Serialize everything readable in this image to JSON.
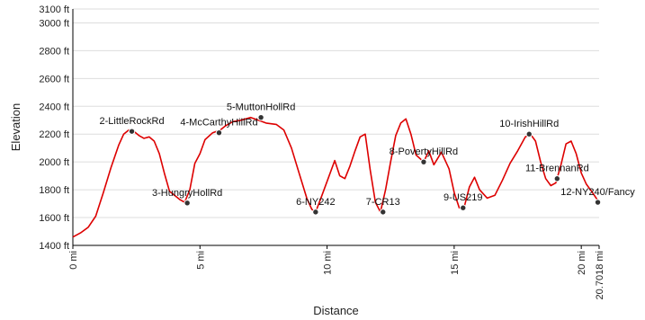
{
  "colors": {
    "line": "#dd0000",
    "grid": "#dddddd",
    "axis": "#000000",
    "marker": "#333333",
    "marker_ring": "#ffffff"
  },
  "chart_data": {
    "type": "line",
    "title": "",
    "xlabel": "Distance",
    "ylabel": "Elevation",
    "xlim": [
      0,
      20.7018
    ],
    "ylim": [
      1400,
      3100
    ],
    "grid": "horizontal",
    "x_ticks": [
      {
        "value": 0,
        "label": "0 mi"
      },
      {
        "value": 5,
        "label": "5 mi"
      },
      {
        "value": 10,
        "label": "10 mi"
      },
      {
        "value": 15,
        "label": "15 mi"
      },
      {
        "value": 20,
        "label": "20 mi"
      },
      {
        "value": 20.7018,
        "label": "20.7018 mi"
      }
    ],
    "y_ticks": [
      {
        "value": 1400,
        "label": "1400 ft"
      },
      {
        "value": 1600,
        "label": "1600 ft"
      },
      {
        "value": 1800,
        "label": "1800 ft"
      },
      {
        "value": 2000,
        "label": "2000 ft"
      },
      {
        "value": 2200,
        "label": "2200 ft"
      },
      {
        "value": 2400,
        "label": "2400 ft"
      },
      {
        "value": 2600,
        "label": "2600 ft"
      },
      {
        "value": 2800,
        "label": "2800 ft"
      },
      {
        "value": 3000,
        "label": "3000 ft"
      },
      {
        "value": 3100,
        "label": "3100 ft"
      }
    ],
    "series": [
      {
        "x": [
          0,
          0.3,
          0.6,
          0.9,
          1.2,
          1.5,
          1.8,
          2.0,
          2.2,
          2.4,
          2.6,
          2.8,
          3.0,
          3.2,
          3.4,
          3.6,
          3.8,
          4.0,
          4.2,
          4.4,
          4.6,
          4.8,
          5.0,
          5.2,
          5.5,
          5.8,
          6.0,
          6.3,
          6.6,
          7.0,
          7.3,
          7.6,
          8.0,
          8.3,
          8.6,
          8.9,
          9.2,
          9.4,
          9.55,
          9.8,
          10.0,
          10.3,
          10.5,
          10.7,
          10.9,
          11.1,
          11.3,
          11.5,
          11.7,
          11.9,
          12.1,
          12.3,
          12.5,
          12.7,
          12.9,
          13.1,
          13.3,
          13.5,
          13.8,
          14.0,
          14.2,
          14.5,
          14.8,
          15.0,
          15.2,
          15.4,
          15.6,
          15.8,
          16.0,
          16.3,
          16.6,
          16.9,
          17.2,
          17.5,
          17.8,
          18.0,
          18.2,
          18.4,
          18.6,
          18.8,
          19.0,
          19.2,
          19.4,
          19.6,
          19.8,
          20.0,
          20.2,
          20.4,
          20.7
        ],
        "y": [
          1460,
          1490,
          1530,
          1610,
          1780,
          1960,
          2120,
          2200,
          2230,
          2220,
          2190,
          2170,
          2180,
          2150,
          2060,
          1920,
          1790,
          1760,
          1730,
          1710,
          1800,
          1990,
          2060,
          2160,
          2210,
          2230,
          2260,
          2290,
          2300,
          2320,
          2300,
          2280,
          2270,
          2230,
          2100,
          1920,
          1740,
          1660,
          1640,
          1760,
          1860,
          2010,
          1900,
          1880,
          1970,
          2080,
          2180,
          2200,
          1940,
          1710,
          1640,
          1800,
          2000,
          2190,
          2280,
          2310,
          2200,
          2050,
          2000,
          2080,
          1980,
          2070,
          1950,
          1780,
          1670,
          1680,
          1820,
          1890,
          1800,
          1740,
          1760,
          1870,
          1990,
          2080,
          2180,
          2200,
          2150,
          2000,
          1880,
          1830,
          1850,
          1980,
          2130,
          2150,
          2060,
          1920,
          1840,
          1790,
          1710
        ]
      }
    ],
    "waypoints": [
      {
        "label": "2-LittleRockRd",
        "x": 2.32,
        "y": 2220
      },
      {
        "label": "3-HungryHollRd",
        "x": 4.5,
        "y": 1705
      },
      {
        "label": "4-McCarthyHillRd",
        "x": 5.75,
        "y": 2210
      },
      {
        "label": "5-MuttonHollRd",
        "x": 7.4,
        "y": 2320
      },
      {
        "label": "6-NY242",
        "x": 9.55,
        "y": 1640
      },
      {
        "label": "7-CR13",
        "x": 12.2,
        "y": 1640
      },
      {
        "label": "8-PovertyHillRd",
        "x": 13.8,
        "y": 2000
      },
      {
        "label": "9-US219",
        "x": 15.35,
        "y": 1670
      },
      {
        "label": "10-IrishHillRd",
        "x": 17.95,
        "y": 2200
      },
      {
        "label": "11-BrennanRd",
        "x": 19.05,
        "y": 1880
      },
      {
        "label": "12-NY240/Fancy",
        "x": 20.65,
        "y": 1710
      }
    ]
  }
}
